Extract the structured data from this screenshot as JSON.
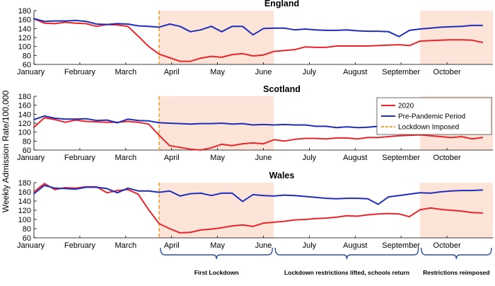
{
  "ylabel": "Weekly Admission Rate/100,000",
  "months": [
    "January",
    "February",
    "March",
    "April",
    "May",
    "June",
    "July",
    "August",
    "September",
    "October"
  ],
  "legend": {
    "items": [
      {
        "label": "2020",
        "color": "#e8262b",
        "style": "solid"
      },
      {
        "label": "Pre-Pandemic Period",
        "color": "#1f2fb8",
        "style": "solid"
      },
      {
        "label": "Lockdown Imposed",
        "color": "#f0a030",
        "style": "dashed"
      }
    ]
  },
  "annotations": [
    {
      "label": "First Lockdown",
      "from_week": 12,
      "to_week": 23
    },
    {
      "label": "Lockdown restrictions lifted, schools return",
      "from_week": 23,
      "to_week": 37
    },
    {
      "label": "Restrictions reimposed",
      "from_week": 37,
      "to_week": 44
    }
  ],
  "colors": {
    "shade": "#fde4d9",
    "red": "#e8262b",
    "blue": "#1f2fb8",
    "orange": "#f0a030"
  },
  "chart_data": [
    {
      "type": "line",
      "title": "England",
      "ylim": [
        60,
        180
      ],
      "yticks": [
        60,
        80,
        100,
        120,
        140,
        160,
        180
      ],
      "shaded": [
        [
          12,
          23
        ],
        [
          37,
          44
        ]
      ],
      "lockdown_week": 12,
      "series": [
        {
          "name": "2020",
          "color": "#e8262b",
          "x": [
            0,
            1,
            2,
            3,
            4,
            5,
            6,
            7,
            8,
            9,
            10,
            11,
            12,
            13,
            14,
            15,
            16,
            17,
            18,
            19,
            20,
            21,
            22,
            23,
            24,
            25,
            26,
            27,
            28,
            29,
            30,
            31,
            32,
            33,
            34,
            35,
            36,
            37,
            38,
            39,
            40,
            41,
            42,
            43
          ],
          "values": [
            162,
            152,
            151,
            154,
            152,
            151,
            145,
            149,
            148,
            145,
            123,
            100,
            83,
            75,
            67,
            67,
            74,
            78,
            76,
            82,
            84,
            79,
            81,
            89,
            91,
            93,
            99,
            98,
            98,
            101,
            101,
            101,
            101,
            102,
            103,
            104,
            102,
            112,
            113,
            114,
            115,
            115,
            114,
            109
          ]
        },
        {
          "name": "Pre-Pandemic Period",
          "color": "#1f2fb8",
          "x": [
            0,
            1,
            2,
            3,
            4,
            5,
            6,
            7,
            8,
            9,
            10,
            11,
            12,
            13,
            14,
            15,
            16,
            17,
            18,
            19,
            20,
            21,
            22,
            23,
            24,
            25,
            26,
            27,
            28,
            29,
            30,
            31,
            32,
            33,
            34,
            35,
            36,
            37,
            38,
            39,
            40,
            41,
            42,
            43
          ],
          "values": [
            162,
            156,
            157,
            157,
            158,
            156,
            150,
            149,
            151,
            150,
            146,
            145,
            143,
            150,
            145,
            133,
            137,
            145,
            133,
            145,
            145,
            126,
            140,
            141,
            141,
            137,
            139,
            137,
            136,
            136,
            137,
            135,
            134,
            134,
            133,
            122,
            136,
            139,
            141,
            143,
            144,
            145,
            147,
            147
          ]
        }
      ]
    },
    {
      "type": "line",
      "title": "Scotland",
      "ylim": [
        60,
        180
      ],
      "yticks": [
        60,
        80,
        100,
        120,
        140,
        160,
        180
      ],
      "shaded": [
        [
          12,
          23
        ],
        [
          37,
          44
        ]
      ],
      "lockdown_week": 12,
      "series": [
        {
          "name": "2020",
          "color": "#e8262b",
          "x": [
            0,
            1,
            2,
            3,
            4,
            5,
            6,
            7,
            8,
            9,
            10,
            11,
            12,
            13,
            14,
            15,
            16,
            17,
            18,
            19,
            20,
            21,
            22,
            23,
            24,
            25,
            26,
            27,
            28,
            29,
            30,
            31,
            32,
            33,
            34,
            35,
            36,
            37,
            38,
            39,
            40,
            41,
            42,
            43
          ],
          "values": [
            111,
            132,
            128,
            122,
            127,
            124,
            123,
            122,
            122,
            124,
            122,
            118,
            93,
            70,
            66,
            62,
            60,
            65,
            73,
            70,
            74,
            76,
            74,
            83,
            80,
            84,
            86,
            86,
            85,
            87,
            87,
            85,
            88,
            88,
            90,
            92,
            93,
            94,
            92,
            90,
            88,
            90,
            85,
            88
          ]
        },
        {
          "name": "Pre-Pandemic Period",
          "color": "#1f2fb8",
          "x": [
            0,
            1,
            2,
            3,
            4,
            5,
            6,
            7,
            8,
            9,
            10,
            11,
            12,
            13,
            14,
            15,
            16,
            17,
            18,
            19,
            20,
            21,
            22,
            23,
            24,
            25,
            26,
            27,
            28,
            29,
            30,
            31,
            32,
            33,
            34,
            35,
            36,
            37,
            38,
            39,
            40,
            41,
            42,
            43
          ],
          "values": [
            128,
            136,
            131,
            129,
            129,
            130,
            126,
            127,
            121,
            129,
            126,
            125,
            121,
            120,
            119,
            118,
            119,
            119,
            120,
            118,
            119,
            116,
            117,
            116,
            117,
            116,
            116,
            113,
            113,
            110,
            112,
            110,
            111,
            113,
            114,
            118,
            117,
            119,
            119,
            119,
            121,
            124,
            115,
            121
          ]
        }
      ]
    },
    {
      "type": "line",
      "title": "Wales",
      "ylim": [
        60,
        180
      ],
      "yticks": [
        60,
        80,
        100,
        120,
        140,
        160,
        180
      ],
      "shaded": [
        [
          12,
          23
        ],
        [
          37,
          44
        ]
      ],
      "lockdown_week": 12,
      "series": [
        {
          "name": "2020",
          "color": "#e8262b",
          "x": [
            0,
            1,
            2,
            3,
            4,
            5,
            6,
            7,
            8,
            9,
            10,
            11,
            12,
            13,
            14,
            15,
            16,
            17,
            18,
            19,
            20,
            21,
            22,
            23,
            24,
            25,
            26,
            27,
            28,
            29,
            30,
            31,
            32,
            33,
            34,
            35,
            36,
            37,
            38,
            39,
            40,
            41,
            42,
            43
          ],
          "values": [
            160,
            178,
            165,
            169,
            168,
            171,
            171,
            158,
            163,
            165,
            155,
            121,
            91,
            80,
            71,
            72,
            77,
            79,
            82,
            86,
            88,
            85,
            92,
            94,
            96,
            99,
            100,
            102,
            103,
            105,
            108,
            107,
            110,
            112,
            113,
            112,
            106,
            121,
            125,
            122,
            120,
            118,
            115,
            114
          ]
        },
        {
          "name": "Pre-Pandemic Period",
          "color": "#1f2fb8",
          "x": [
            0,
            1,
            2,
            3,
            4,
            5,
            6,
            7,
            8,
            9,
            10,
            11,
            12,
            13,
            14,
            15,
            16,
            17,
            18,
            19,
            20,
            21,
            22,
            23,
            24,
            25,
            26,
            27,
            28,
            29,
            30,
            31,
            32,
            33,
            34,
            35,
            36,
            37,
            38,
            39,
            40,
            41,
            42,
            43
          ],
          "values": [
            156,
            174,
            168,
            167,
            166,
            170,
            170,
            167,
            158,
            168,
            162,
            162,
            159,
            162,
            151,
            156,
            157,
            152,
            157,
            157,
            139,
            154,
            152,
            151,
            153,
            152,
            150,
            148,
            146,
            145,
            146,
            146,
            145,
            133,
            149,
            152,
            155,
            158,
            157,
            160,
            162,
            163,
            163,
            164
          ]
        }
      ]
    }
  ]
}
